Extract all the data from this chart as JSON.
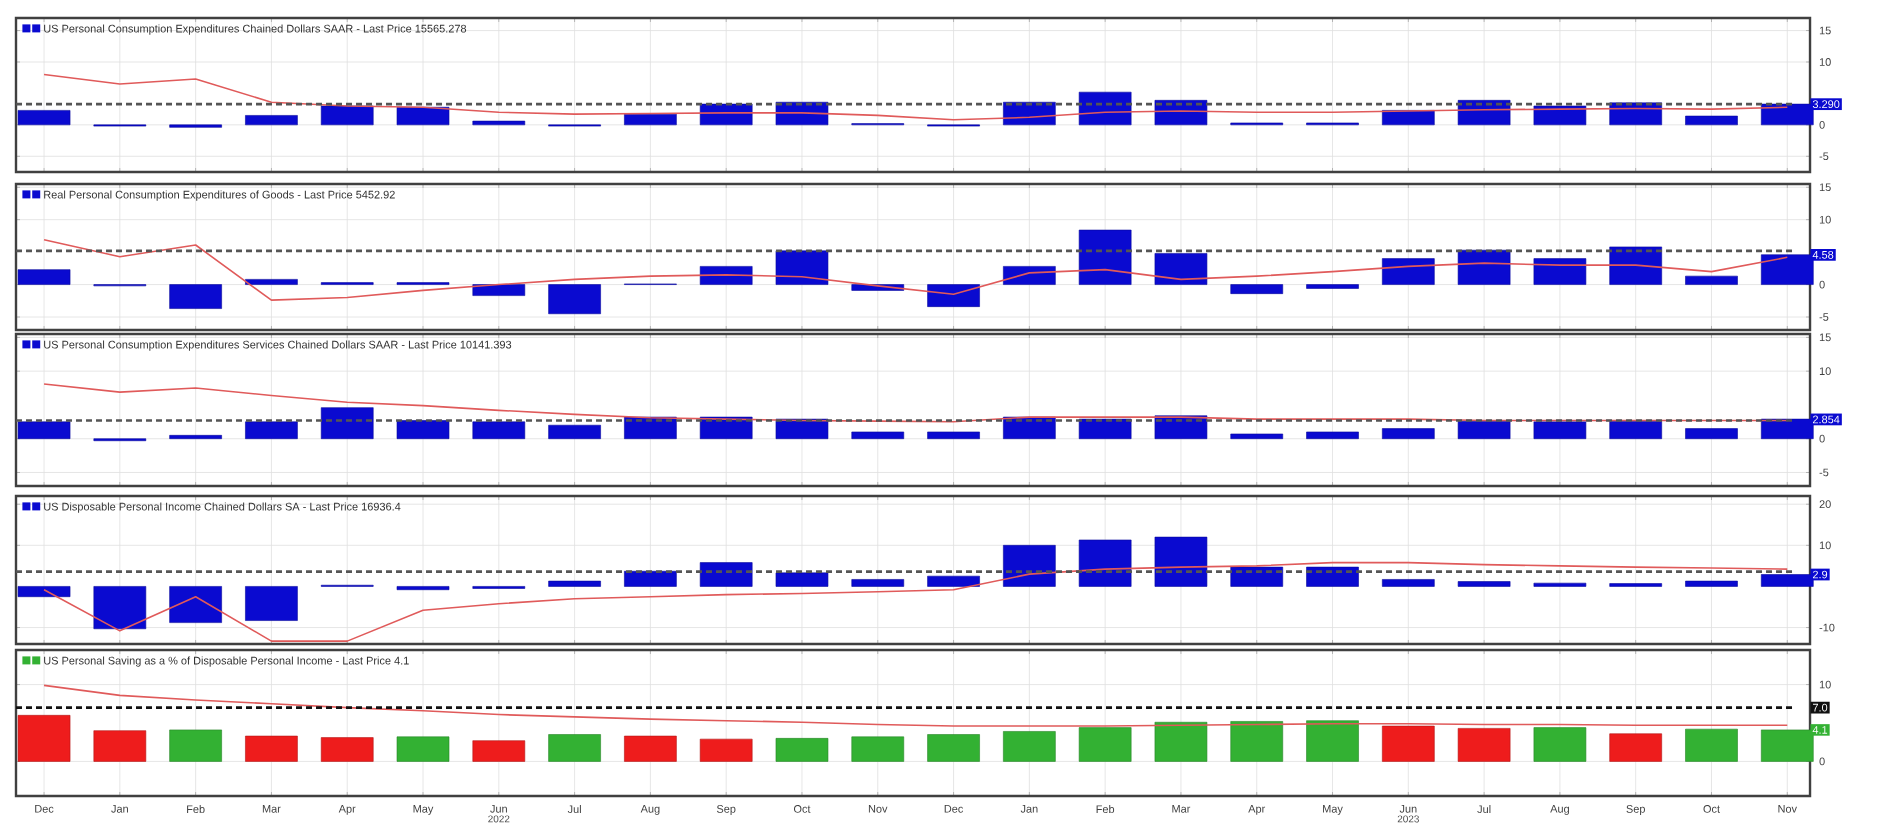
{
  "chart_data": [
    {
      "type": "bar",
      "title": "US Personal Consumption Expenditures Chained Dollars SAAR - Last Price 15565.278",
      "tick_labels": "y",
      "grid": true,
      "series": [
        {
          "color": "#0a0ad0",
          "values": [
            2.3,
            -0.2,
            -0.4,
            1.5,
            3.0,
            2.8,
            0.6,
            -0.2,
            1.7,
            3.3,
            3.6,
            0.2,
            -0.2,
            3.6,
            5.2,
            3.9,
            0.3,
            0.3,
            2.3,
            3.9,
            3.0,
            3.5,
            1.4,
            3.3
          ]
        },
        {
          "type": "line",
          "color": "#e05a5a",
          "values": [
            8.0,
            6.5,
            7.3,
            3.6,
            3.0,
            2.8,
            2.0,
            1.7,
            1.8,
            1.9,
            1.9,
            1.5,
            0.8,
            1.2,
            2.0,
            2.2,
            2.0,
            2.0,
            2.2,
            2.4,
            2.5,
            2.6,
            2.5,
            2.8
          ]
        }
      ],
      "ylim": [
        -7.5,
        17
      ],
      "yticks": [
        -5,
        0,
        10,
        15
      ],
      "ref_lines": [
        {
          "axis": "y",
          "value": 3.3,
          "line_style": "dashed",
          "color": "#555555"
        }
      ],
      "annotations": [
        {
          "text": "3.290",
          "y": 3.29
        }
      ]
    },
    {
      "type": "bar",
      "title": "Real Personal Consumption Expenditures of Goods - Last Price 5452.92",
      "tick_labels": "y",
      "grid": true,
      "series": [
        {
          "color": "#0a0ad0",
          "values": [
            2.3,
            -0.2,
            -3.7,
            0.8,
            0.3,
            0.3,
            -1.7,
            -4.5,
            0.1,
            2.8,
            5.2,
            -0.9,
            -3.4,
            2.8,
            8.4,
            4.8,
            -1.4,
            -0.6,
            4.0,
            5.3,
            4.0,
            5.8,
            1.3,
            4.6
          ]
        },
        {
          "type": "line",
          "color": "#e05a5a",
          "values": [
            6.9,
            4.3,
            6.1,
            -2.4,
            -2.0,
            -0.9,
            0,
            0.8,
            1.3,
            1.5,
            1.2,
            -0.2,
            -1.5,
            1.8,
            2.3,
            0.8,
            1.3,
            2.0,
            2.8,
            3.3,
            3.0,
            3.0,
            2.0,
            4.2
          ]
        }
      ],
      "ylim": [
        -7,
        15.5
      ],
      "yticks": [
        -5,
        0,
        10,
        15
      ],
      "ref_lines": [
        {
          "axis": "y",
          "value": 5.2,
          "line_style": "dashed",
          "color": "#555555"
        }
      ],
      "annotations": [
        {
          "text": "4.58",
          "y": 4.58
        }
      ]
    },
    {
      "type": "bar",
      "title": "US Personal Consumption Expenditures Services Chained Dollars SAAR - Last Price 10141.393",
      "tick_labels": "y",
      "grid": true,
      "series": [
        {
          "color": "#0a0ad0",
          "values": [
            2.5,
            -0.3,
            0.5,
            2.5,
            4.6,
            2.7,
            2.5,
            2.0,
            3.2,
            3.2,
            2.9,
            1.0,
            1.0,
            3.2,
            2.9,
            3.4,
            0.7,
            1.0,
            1.5,
            2.6,
            2.5,
            2.6,
            1.5,
            2.9
          ]
        },
        {
          "type": "line",
          "color": "#e05a5a",
          "values": [
            8.1,
            6.9,
            7.5,
            6.4,
            5.4,
            4.9,
            4.2,
            3.6,
            3.1,
            2.9,
            2.7,
            2.6,
            2.5,
            3.2,
            3.2,
            3.2,
            2.9,
            2.9,
            2.9,
            2.7,
            2.7,
            2.7,
            2.7,
            2.7
          ]
        }
      ],
      "ylim": [
        -7,
        15.5
      ],
      "yticks": [
        -5,
        0,
        10,
        15
      ],
      "ref_lines": [
        {
          "axis": "y",
          "value": 2.7,
          "line_style": "dashed",
          "color": "#555555"
        }
      ],
      "annotations": [
        {
          "text": "2.854",
          "y": 2.854
        }
      ]
    },
    {
      "type": "bar",
      "title": "US Disposable Personal Income Chained Dollars SA - Last Price 16936.4",
      "tick_labels": "y",
      "grid": true,
      "series": [
        {
          "color": "#0a0ad0",
          "values": [
            -2.5,
            -10.3,
            -8.8,
            -8.3,
            0.3,
            -0.8,
            -0.5,
            1.3,
            3.7,
            5.8,
            3.3,
            1.7,
            2.5,
            10.0,
            11.3,
            12.0,
            4.7,
            4.7,
            1.7,
            1.2,
            0.8,
            0.7,
            1.3,
            2.9
          ]
        },
        {
          "type": "line",
          "color": "#e05a5a",
          "values": [
            -0.8,
            -10.8,
            -2.5,
            -13.3,
            -13.3,
            -5.8,
            -4.2,
            -3.0,
            -2.5,
            -2.0,
            -1.7,
            -1.3,
            -0.8,
            3.0,
            4.2,
            4.7,
            5.0,
            5.8,
            5.8,
            5.3,
            5.0,
            4.7,
            4.5,
            4.2
          ]
        }
      ],
      "ylim": [
        -14,
        22
      ],
      "yticks": [
        -10,
        10,
        20
      ],
      "ref_lines": [
        {
          "axis": "y",
          "value": 3.6,
          "line_style": "dashed",
          "color": "#555555"
        }
      ],
      "annotations": [
        {
          "text": "2.9",
          "y": 2.9
        }
      ]
    },
    {
      "type": "bar",
      "title": "US Personal Saving as a % of Disposable Personal Income - Last Price 4.1",
      "grid": true,
      "categories": [
        "Dec",
        "Jan",
        "Feb",
        "Mar",
        "Apr",
        "May",
        "Jun",
        "Jul",
        "Aug",
        "Sep",
        "Oct",
        "Nov",
        "Dec",
        "Jan",
        "Feb",
        "Mar",
        "Apr",
        "May",
        "Jun",
        "Jul",
        "Aug",
        "Sep",
        "Oct",
        "Nov"
      ],
      "series": [
        {
          "colors": [
            "#ee1c1c",
            "#ee1c1c",
            "#33b133",
            "#ee1c1c",
            "#ee1c1c",
            "#33b133",
            "#ee1c1c",
            "#33b133",
            "#ee1c1c",
            "#ee1c1c",
            "#33b133",
            "#33b133",
            "#33b133",
            "#33b133",
            "#33b133",
            "#33b133",
            "#33b133",
            "#33b133",
            "#ee1c1c",
            "#ee1c1c",
            "#33b133",
            "#ee1c1c",
            "#33b133",
            "#33b133"
          ],
          "values": [
            6.0,
            4.0,
            4.1,
            3.3,
            3.1,
            3.2,
            2.7,
            3.5,
            3.3,
            2.9,
            3.0,
            3.2,
            3.5,
            3.9,
            4.4,
            5.1,
            5.2,
            5.3,
            4.6,
            4.3,
            4.4,
            3.6,
            4.2,
            4.1
          ]
        },
        {
          "type": "line",
          "color": "#e05a5a",
          "values": [
            9.9,
            8.6,
            8.0,
            7.5,
            7.0,
            6.6,
            6.1,
            5.8,
            5.5,
            5.3,
            5.1,
            4.8,
            4.6,
            4.6,
            4.6,
            4.7,
            4.8,
            4.9,
            4.9,
            4.8,
            4.8,
            4.7,
            4.7,
            4.7
          ]
        }
      ],
      "ylim": [
        -4.5,
        14.5
      ],
      "yticks": [
        0,
        10
      ],
      "ref_lines": [
        {
          "axis": "y",
          "value": 7.0,
          "line_style": "dashed",
          "color": "#111111",
          "label": "7.0"
        }
      ],
      "annotations": [
        {
          "text": "4.1",
          "y": 4.1
        },
        "2022",
        "2023"
      ]
    }
  ]
}
